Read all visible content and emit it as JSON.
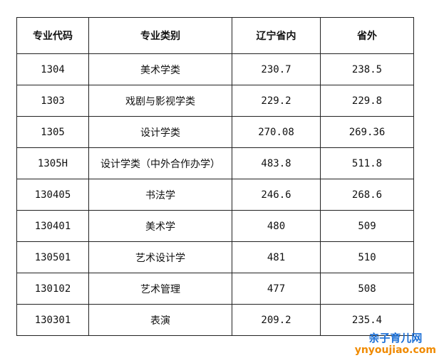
{
  "table": {
    "headers": [
      "专业代码",
      "专业类别",
      "辽宁省内",
      "省外"
    ],
    "rows": [
      [
        "1304",
        "美术学类",
        "230.7",
        "238.5"
      ],
      [
        "1303",
        "戏剧与影视学类",
        "229.2",
        "229.8"
      ],
      [
        "1305",
        "设计学类",
        "270.08",
        "269.36"
      ],
      [
        "1305H",
        "设计学类（中外合作办学）",
        "483.8",
        "511.8"
      ],
      [
        "130405",
        "书法学",
        "246.6",
        "268.6"
      ],
      [
        "130401",
        "美术学",
        "480",
        "509"
      ],
      [
        "130501",
        "艺术设计学",
        "481",
        "510"
      ],
      [
        "130102",
        "艺术管理",
        "477",
        "508"
      ],
      [
        "130301",
        "表演",
        "209.2",
        "235.4"
      ]
    ]
  },
  "watermark": {
    "line1": "亲子育儿网",
    "line2": "ynyoujiao.com"
  }
}
